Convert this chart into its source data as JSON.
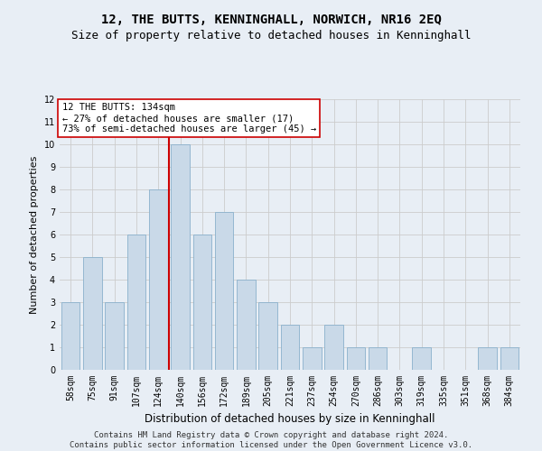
{
  "title": "12, THE BUTTS, KENNINGHALL, NORWICH, NR16 2EQ",
  "subtitle": "Size of property relative to detached houses in Kenninghall",
  "xlabel": "Distribution of detached houses by size in Kenninghall",
  "ylabel": "Number of detached properties",
  "categories": [
    "58sqm",
    "75sqm",
    "91sqm",
    "107sqm",
    "124sqm",
    "140sqm",
    "156sqm",
    "172sqm",
    "189sqm",
    "205sqm",
    "221sqm",
    "237sqm",
    "254sqm",
    "270sqm",
    "286sqm",
    "303sqm",
    "319sqm",
    "335sqm",
    "351sqm",
    "368sqm",
    "384sqm"
  ],
  "values": [
    3,
    5,
    3,
    6,
    8,
    10,
    6,
    7,
    4,
    3,
    2,
    1,
    2,
    1,
    1,
    0,
    1,
    0,
    0,
    1,
    1
  ],
  "bar_color": "#c9d9e8",
  "bar_edge_color": "#8ab0cc",
  "vline_color": "#cc0000",
  "vline_index": 4.5,
  "annotation_text": "12 THE BUTTS: 134sqm\n← 27% of detached houses are smaller (17)\n73% of semi-detached houses are larger (45) →",
  "annotation_box_color": "#ffffff",
  "annotation_box_edge_color": "#cc0000",
  "ylim": [
    0,
    12
  ],
  "yticks": [
    0,
    1,
    2,
    3,
    4,
    5,
    6,
    7,
    8,
    9,
    10,
    11,
    12
  ],
  "grid_color": "#cccccc",
  "background_color": "#e8eef5",
  "footer_line1": "Contains HM Land Registry data © Crown copyright and database right 2024.",
  "footer_line2": "Contains public sector information licensed under the Open Government Licence v3.0.",
  "title_fontsize": 10,
  "subtitle_fontsize": 9,
  "xlabel_fontsize": 8.5,
  "ylabel_fontsize": 8,
  "tick_fontsize": 7,
  "annotation_fontsize": 7.5,
  "footer_fontsize": 6.5
}
